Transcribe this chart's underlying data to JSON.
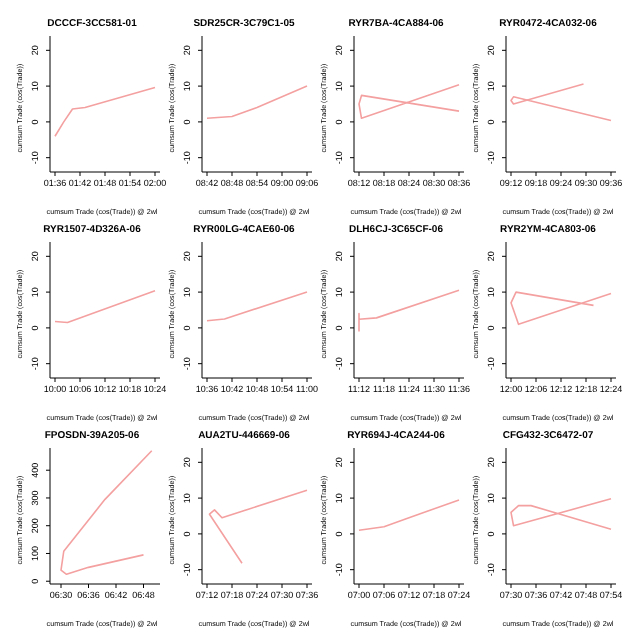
{
  "chart_data": [
    {
      "type": "line",
      "title": "DCCCF-3CC581-01",
      "xlabel": "cumsum Trade (cos(Trade)) @ 2wl",
      "ylabel": "cumsum Trade (cos(Trade))",
      "x": [
        1.6,
        1.635,
        1.67,
        1.72,
        2.0
      ],
      "values": [
        -4,
        0,
        3.6,
        4,
        9.6
      ],
      "color": "#f4a0a0",
      "xlim": [
        1.58,
        2.02
      ],
      "xticks": [
        {
          "value": 1.6,
          "label": "01:36"
        },
        {
          "value": 1.7,
          "label": "01:42"
        },
        {
          "value": 1.8,
          "label": "01:48"
        },
        {
          "value": 1.9,
          "label": "01:54"
        },
        {
          "value": 2.0,
          "label": "02:00"
        }
      ],
      "ylim": [
        -14,
        24
      ],
      "yticks": [
        -10,
        0,
        10,
        20
      ]
    },
    {
      "type": "line",
      "title": "SDR25CR-3C79C1-05",
      "xlabel": "cumsum Trade (cos(Trade)) @ 2wl",
      "ylabel": "cumsum Trade (cos(Trade))",
      "x": [
        8.7,
        8.8,
        8.9,
        9.1
      ],
      "values": [
        1,
        1.5,
        4,
        10
      ],
      "color": "#f4a0a0",
      "xlim": [
        8.68,
        9.12
      ],
      "xticks": [
        {
          "value": 8.7,
          "label": "08:42"
        },
        {
          "value": 8.8,
          "label": "08:48"
        },
        {
          "value": 8.9,
          "label": "08:54"
        },
        {
          "value": 9.0,
          "label": "09:00"
        },
        {
          "value": 9.1,
          "label": "09:06"
        }
      ],
      "ylim": [
        -14,
        24
      ],
      "yticks": [
        -10,
        0,
        10,
        20
      ]
    },
    {
      "type": "line",
      "title": "RYR7BA-4CA884-06",
      "xlabel": "cumsum Trade (cos(Trade)) @ 2wl",
      "ylabel": "cumsum Trade (cos(Trade))",
      "x": [
        8.6,
        8.21,
        8.2,
        8.21,
        8.6
      ],
      "values": [
        3,
        7.4,
        5,
        1,
        10.4
      ],
      "color": "#f4a0a0",
      "xlim": [
        8.18,
        8.62
      ],
      "xticks": [
        {
          "value": 8.2,
          "label": "08:12"
        },
        {
          "value": 8.3,
          "label": "08:18"
        },
        {
          "value": 8.4,
          "label": "08:24"
        },
        {
          "value": 8.5,
          "label": "08:30"
        },
        {
          "value": 8.6,
          "label": "08:36"
        }
      ],
      "ylim": [
        -14,
        24
      ],
      "yticks": [
        -10,
        0,
        10,
        20
      ]
    },
    {
      "type": "line",
      "title": "RYR0472-4CA032-06",
      "xlabel": "cumsum Trade (cos(Trade)) @ 2wl",
      "ylabel": "cumsum Trade (cos(Trade))",
      "x": [
        9.6,
        9.21,
        9.2,
        9.21,
        9.49
      ],
      "values": [
        0.4,
        7,
        6,
        5,
        10.6
      ],
      "color": "#f4a0a0",
      "xlim": [
        9.18,
        9.62
      ],
      "xticks": [
        {
          "value": 9.2,
          "label": "09:12"
        },
        {
          "value": 9.3,
          "label": "09:18"
        },
        {
          "value": 9.4,
          "label": "09:24"
        },
        {
          "value": 9.5,
          "label": "09:30"
        },
        {
          "value": 9.6,
          "label": "09:36"
        }
      ],
      "ylim": [
        -14,
        24
      ],
      "yticks": [
        -10,
        0,
        10,
        20
      ]
    },
    {
      "type": "line",
      "title": "RYR1507-4D326A-06",
      "xlabel": "cumsum Trade (cos(Trade)) @ 2wl",
      "ylabel": "cumsum Trade (cos(Trade))",
      "x": [
        10,
        10.05,
        10.4
      ],
      "values": [
        1.8,
        1.5,
        10.4
      ],
      "color": "#f4a0a0",
      "xlim": [
        9.98,
        10.42
      ],
      "xticks": [
        {
          "value": 10.0,
          "label": "10:00"
        },
        {
          "value": 10.1,
          "label": "10:06"
        },
        {
          "value": 10.2,
          "label": "10:12"
        },
        {
          "value": 10.3,
          "label": "10:18"
        },
        {
          "value": 10.4,
          "label": "10:24"
        }
      ],
      "ylim": [
        -14,
        24
      ],
      "yticks": [
        -10,
        0,
        10,
        20
      ]
    },
    {
      "type": "line",
      "title": "RYR00LG-4CAE60-06",
      "xlabel": "cumsum Trade (cos(Trade)) @ 2wl",
      "ylabel": "cumsum Trade (cos(Trade))",
      "x": [
        10.6,
        10.67,
        11.0
      ],
      "values": [
        2,
        2.5,
        10
      ],
      "color": "#f4a0a0",
      "xlim": [
        10.58,
        11.02
      ],
      "xticks": [
        {
          "value": 10.6,
          "label": "10:36"
        },
        {
          "value": 10.7,
          "label": "10:42"
        },
        {
          "value": 10.8,
          "label": "10:48"
        },
        {
          "value": 10.9,
          "label": "10:54"
        },
        {
          "value": 11.0,
          "label": "11:00"
        }
      ],
      "ylim": [
        -14,
        24
      ],
      "yticks": [
        -10,
        0,
        10,
        20
      ]
    },
    {
      "type": "line",
      "title": "DLH6CJ-3C65CF-06",
      "xlabel": "cumsum Trade (cos(Trade)) @ 2wl",
      "ylabel": "cumsum Trade (cos(Trade))",
      "x": [
        11.2,
        11.2,
        11.2,
        11.27,
        11.6
      ],
      "values": [
        -1,
        4,
        2.4,
        2.8,
        10.5
      ],
      "color": "#f4a0a0",
      "xlim": [
        11.18,
        11.62
      ],
      "xticks": [
        {
          "value": 11.2,
          "label": "11:12"
        },
        {
          "value": 11.3,
          "label": "11:18"
        },
        {
          "value": 11.4,
          "label": "11:24"
        },
        {
          "value": 11.5,
          "label": "11:30"
        },
        {
          "value": 11.6,
          "label": "11:36"
        }
      ],
      "ylim": [
        -14,
        24
      ],
      "yticks": [
        -10,
        0,
        10,
        20
      ]
    },
    {
      "type": "line",
      "title": "RYR2YM-4CA803-06",
      "xlabel": "cumsum Trade (cos(Trade)) @ 2wl",
      "ylabel": "cumsum Trade (cos(Trade))",
      "x": [
        12.33,
        12.02,
        12.0,
        12.03,
        12.4
      ],
      "values": [
        6.3,
        10,
        7,
        1,
        9.6
      ],
      "color": "#f4a0a0",
      "xlim": [
        11.98,
        12.42
      ],
      "xticks": [
        {
          "value": 12.0,
          "label": "12:00"
        },
        {
          "value": 12.1,
          "label": "12:06"
        },
        {
          "value": 12.2,
          "label": "12:12"
        },
        {
          "value": 12.3,
          "label": "12:18"
        },
        {
          "value": 12.4,
          "label": "12:24"
        }
      ],
      "ylim": [
        -14,
        24
      ],
      "yticks": [
        -10,
        0,
        10,
        20
      ]
    },
    {
      "type": "line",
      "title": "FPOSDN-39A205-06",
      "xlabel": "cumsum Trade (cos(Trade)) @ 2wl",
      "ylabel": "cumsum Trade (cos(Trade))",
      "x": [
        6.83,
        6.66,
        6.51,
        6.5,
        6.52,
        6.6,
        6.8
      ],
      "values": [
        470,
        295,
        108,
        40,
        25,
        50,
        95
      ],
      "color": "#f4a0a0",
      "xlim": [
        6.46,
        6.86
      ],
      "xticks": [
        {
          "value": 6.5,
          "label": "06:30"
        },
        {
          "value": 6.6,
          "label": "06:36"
        },
        {
          "value": 6.7,
          "label": "06:42"
        },
        {
          "value": 6.8,
          "label": "06:48"
        }
      ],
      "ylim": [
        -10,
        480
      ],
      "yticks": [
        0,
        100,
        200,
        300,
        400
      ]
    },
    {
      "type": "line",
      "title": "AUA2TU-446669-06",
      "xlabel": "cumsum Trade (cos(Trade)) @ 2wl",
      "ylabel": "cumsum Trade (cos(Trade))",
      "x": [
        7.34,
        7.21,
        7.23,
        7.26,
        7.6
      ],
      "values": [
        -8.2,
        5.5,
        6.7,
        4.5,
        12.2
      ],
      "color": "#f4a0a0",
      "xlim": [
        7.18,
        7.62
      ],
      "xticks": [
        {
          "value": 7.2,
          "label": "07:12"
        },
        {
          "value": 7.3,
          "label": "07:18"
        },
        {
          "value": 7.4,
          "label": "07:24"
        },
        {
          "value": 7.5,
          "label": "07:30"
        },
        {
          "value": 7.6,
          "label": "07:36"
        }
      ],
      "ylim": [
        -14,
        24
      ],
      "yticks": [
        -10,
        0,
        10,
        20
      ]
    },
    {
      "type": "line",
      "title": "RYR694J-4CA244-06",
      "xlabel": "cumsum Trade (cos(Trade)) @ 2wl",
      "ylabel": "cumsum Trade (cos(Trade))",
      "x": [
        7.0,
        7.1,
        7.2,
        7.4
      ],
      "values": [
        1,
        2,
        4.5,
        9.5
      ],
      "color": "#f4a0a0",
      "xlim": [
        6.98,
        7.42
      ],
      "xticks": [
        {
          "value": 7.0,
          "label": "07:00"
        },
        {
          "value": 7.1,
          "label": "07:06"
        },
        {
          "value": 7.2,
          "label": "07:12"
        },
        {
          "value": 7.3,
          "label": "07:18"
        },
        {
          "value": 7.4,
          "label": "07:24"
        }
      ],
      "ylim": [
        -14,
        24
      ],
      "yticks": [
        -10,
        0,
        10,
        20
      ]
    },
    {
      "type": "line",
      "title": "CFG432-3C6472-07",
      "xlabel": "cumsum Trade (cos(Trade)) @ 2wl",
      "ylabel": "cumsum Trade (cos(Trade))",
      "x": [
        7.9,
        7.58,
        7.53,
        7.5,
        7.51,
        7.9
      ],
      "values": [
        1.3,
        7.9,
        7.9,
        6,
        2.3,
        9.8
      ],
      "color": "#f4a0a0",
      "xlim": [
        7.48,
        7.92
      ],
      "xticks": [
        {
          "value": 7.5,
          "label": "07:30"
        },
        {
          "value": 7.6,
          "label": "07:36"
        },
        {
          "value": 7.7,
          "label": "07:42"
        },
        {
          "value": 7.8,
          "label": "07:48"
        },
        {
          "value": 7.9,
          "label": "07:54"
        }
      ],
      "ylim": [
        -14,
        24
      ],
      "yticks": [
        -10,
        0,
        10,
        20
      ]
    }
  ]
}
